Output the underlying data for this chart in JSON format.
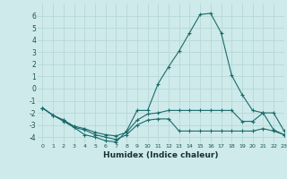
{
  "xlabel": "Humidex (Indice chaleur)",
  "xlim": [
    -0.5,
    23
  ],
  "ylim": [
    -4.5,
    7
  ],
  "yticks": [
    -4,
    -3,
    -2,
    -1,
    0,
    1,
    2,
    3,
    4,
    5,
    6
  ],
  "xticks": [
    0,
    1,
    2,
    3,
    4,
    5,
    6,
    7,
    8,
    9,
    10,
    11,
    12,
    13,
    14,
    15,
    16,
    17,
    18,
    19,
    20,
    21,
    22,
    23
  ],
  "background_color": "#ceeaea",
  "grid_color": "#b8d8d8",
  "line_color": "#1a6b6b",
  "line1_x": [
    0,
    1,
    2,
    3,
    4,
    5,
    6,
    7,
    8,
    9,
    10,
    11,
    12,
    13,
    14,
    15,
    16,
    17,
    18,
    19,
    20,
    21,
    22,
    23
  ],
  "line1_y": [
    -1.6,
    -2.2,
    -2.6,
    -3.2,
    -3.8,
    -4.0,
    -4.3,
    -4.4,
    -3.5,
    -1.8,
    -1.8,
    0.4,
    1.8,
    3.1,
    4.6,
    6.1,
    6.2,
    4.6,
    1.1,
    -0.5,
    -1.8,
    -2.0,
    -2.0,
    -3.5
  ],
  "line2_x": [
    0,
    1,
    2,
    3,
    4,
    5,
    6,
    7,
    8,
    9,
    10,
    11,
    12,
    13,
    14,
    15,
    16,
    17,
    18,
    19,
    20,
    21,
    22,
    23
  ],
  "line2_y": [
    -1.6,
    -2.2,
    -2.6,
    -3.1,
    -3.3,
    -3.6,
    -3.8,
    -3.9,
    -3.6,
    -2.6,
    -2.1,
    -2.0,
    -1.8,
    -1.8,
    -1.8,
    -1.8,
    -1.8,
    -1.8,
    -1.8,
    -2.7,
    -2.7,
    -2.0,
    -3.4,
    -3.8
  ],
  "line3_x": [
    0,
    1,
    2,
    3,
    4,
    5,
    6,
    7,
    8,
    9,
    10,
    11,
    12,
    13,
    14,
    15,
    16,
    17,
    18,
    19,
    20,
    21,
    22,
    23
  ],
  "line3_y": [
    -1.6,
    -2.2,
    -2.7,
    -3.2,
    -3.4,
    -3.8,
    -4.0,
    -4.2,
    -3.8,
    -3.0,
    -2.6,
    -2.5,
    -2.5,
    -3.5,
    -3.5,
    -3.5,
    -3.5,
    -3.5,
    -3.5,
    -3.5,
    -3.5,
    -3.3,
    -3.5,
    -3.8
  ]
}
